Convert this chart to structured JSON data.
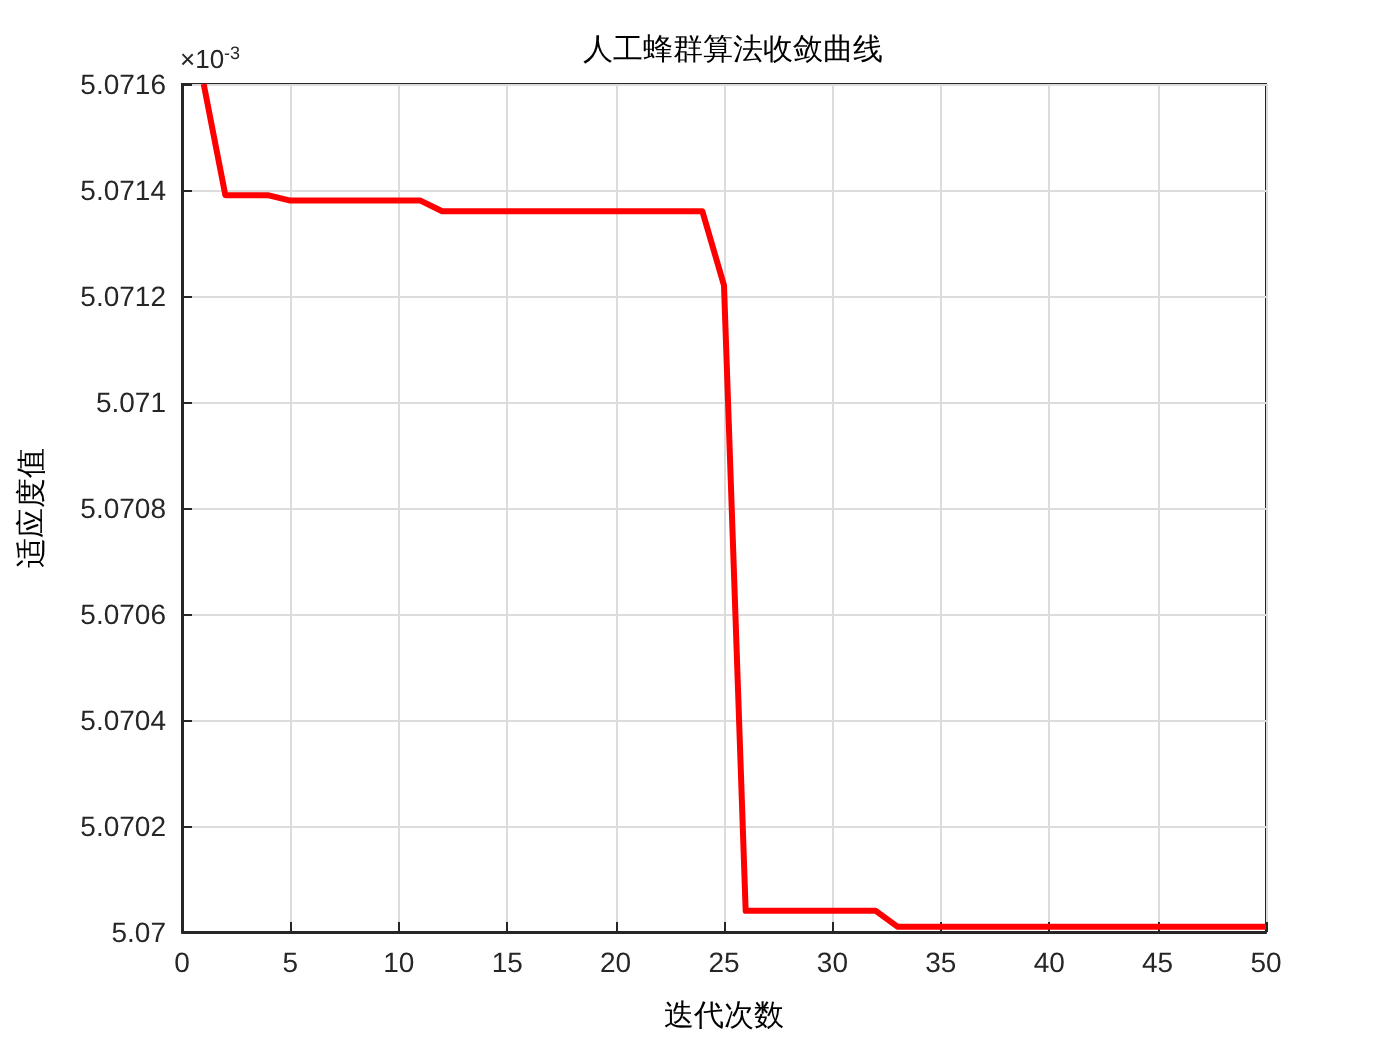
{
  "chart_data": {
    "type": "line",
    "title": "人工蜂群算法收敛曲线",
    "xlabel": "迭代次数",
    "ylabel": "适应度值",
    "annotations": [
      "×10$^{-3}$"
    ],
    "x": [
      1,
      2,
      3,
      4,
      5,
      6,
      7,
      8,
      9,
      10,
      11,
      12,
      13,
      14,
      15,
      16,
      17,
      18,
      19,
      20,
      21,
      22,
      23,
      24,
      25,
      26,
      27,
      28,
      29,
      30,
      31,
      32,
      33,
      34,
      35,
      36,
      37,
      38,
      39,
      40,
      41,
      42,
      43,
      44,
      45,
      46,
      47,
      48,
      49,
      50
    ],
    "series": [
      {
        "color": "#ff0000",
        "values": [
          5.0716,
          5.07139,
          5.07139,
          5.07139,
          5.07138,
          5.07138,
          5.07138,
          5.07138,
          5.07138,
          5.07138,
          5.07138,
          5.07136,
          5.07136,
          5.07136,
          5.07136,
          5.07136,
          5.07136,
          5.07136,
          5.07136,
          5.07136,
          5.07136,
          5.07136,
          5.07136,
          5.07136,
          5.07122,
          5.07004,
          5.07004,
          5.07004,
          5.07004,
          5.07004,
          5.07004,
          5.07004,
          5.07001,
          5.07001,
          5.07001,
          5.07001,
          5.07001,
          5.07001,
          5.07001,
          5.07001,
          5.07001,
          5.07001,
          5.07001,
          5.07001,
          5.07001,
          5.07001,
          5.07001,
          5.07001,
          5.07001,
          5.07001
        ]
      }
    ],
    "xlim": [
      0,
      50
    ],
    "xticks": [
      0,
      5,
      10,
      15,
      20,
      25,
      30,
      35,
      40,
      45,
      50
    ],
    "ylim": [
      5.07,
      5.0716
    ],
    "yticks": [
      5.07,
      5.0702,
      5.0704,
      5.0706,
      5.0708,
      5.071,
      5.0712,
      5.0714,
      5.0716
    ],
    "grid": true,
    "marker": "none",
    "line_style": "solid"
  }
}
